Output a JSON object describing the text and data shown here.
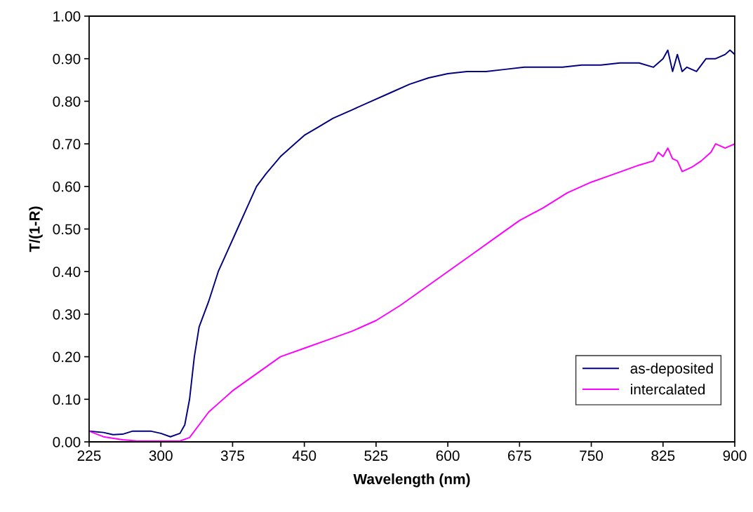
{
  "chart_data": {
    "type": "line",
    "xlabel": "Wavelength (nm)",
    "ylabel": "T/(1-R)",
    "xlim": [
      225,
      900
    ],
    "xticks": [
      225,
      300,
      375,
      450,
      525,
      600,
      675,
      750,
      825,
      900
    ],
    "ylim": [
      0,
      1
    ],
    "yticks": [
      {
        "value": 0,
        "label": "0.00"
      },
      {
        "value": 0.1,
        "label": "0.10"
      },
      {
        "value": 0.2,
        "label": "0.20"
      },
      {
        "value": 0.3,
        "label": "0.30"
      },
      {
        "value": 0.4,
        "label": "0.40"
      },
      {
        "value": 0.5,
        "label": "0.50"
      },
      {
        "value": 0.6,
        "label": "0.60"
      },
      {
        "value": 0.7,
        "label": "0.70"
      },
      {
        "value": 0.8,
        "label": "0.80"
      },
      {
        "value": 0.9,
        "label": "0.90"
      },
      {
        "value": 1,
        "label": "1.00"
      }
    ],
    "grid": false,
    "legend": "bottom right",
    "marker": "none",
    "line_style": "solid",
    "series": [
      {
        "name": "as-deposited",
        "color": "#000080",
        "x": [
          225,
          240,
          250,
          260,
          270,
          290,
          300,
          310,
          320,
          325,
          330,
          335,
          340,
          345,
          350,
          360,
          370,
          380,
          390,
          400,
          410,
          425,
          440,
          450,
          465,
          480,
          500,
          520,
          540,
          560,
          580,
          600,
          620,
          640,
          660,
          680,
          700,
          720,
          740,
          760,
          780,
          800,
          815,
          825,
          830,
          835,
          840,
          845,
          850,
          860,
          870,
          880,
          890,
          895,
          900
        ],
        "values": [
          0.025,
          0.022,
          0.017,
          0.018,
          0.025,
          0.025,
          0.02,
          0.012,
          0.02,
          0.04,
          0.1,
          0.2,
          0.27,
          0.3,
          0.33,
          0.4,
          0.45,
          0.5,
          0.55,
          0.6,
          0.63,
          0.67,
          0.7,
          0.72,
          0.74,
          0.76,
          0.78,
          0.8,
          0.82,
          0.84,
          0.855,
          0.865,
          0.87,
          0.87,
          0.875,
          0.88,
          0.88,
          0.88,
          0.885,
          0.885,
          0.89,
          0.89,
          0.88,
          0.9,
          0.92,
          0.87,
          0.91,
          0.87,
          0.88,
          0.87,
          0.9,
          0.9,
          0.91,
          0.92,
          0.91
        ]
      },
      {
        "name": "intercalated",
        "color": "#ff00ff",
        "x": [
          225,
          240,
          260,
          275,
          300,
          320,
          330,
          340,
          350,
          360,
          375,
          400,
          425,
          450,
          475,
          500,
          525,
          550,
          575,
          600,
          625,
          650,
          675,
          700,
          725,
          750,
          775,
          800,
          815,
          820,
          825,
          830,
          835,
          840,
          845,
          855,
          865,
          875,
          880,
          890,
          900
        ],
        "values": [
          0.025,
          0.012,
          0.005,
          0.002,
          0.002,
          0.002,
          0.01,
          0.04,
          0.07,
          0.09,
          0.12,
          0.16,
          0.2,
          0.22,
          0.24,
          0.26,
          0.285,
          0.32,
          0.36,
          0.4,
          0.44,
          0.48,
          0.52,
          0.55,
          0.585,
          0.61,
          0.63,
          0.65,
          0.66,
          0.68,
          0.67,
          0.69,
          0.665,
          0.66,
          0.635,
          0.645,
          0.66,
          0.68,
          0.7,
          0.69,
          0.7
        ]
      }
    ]
  }
}
